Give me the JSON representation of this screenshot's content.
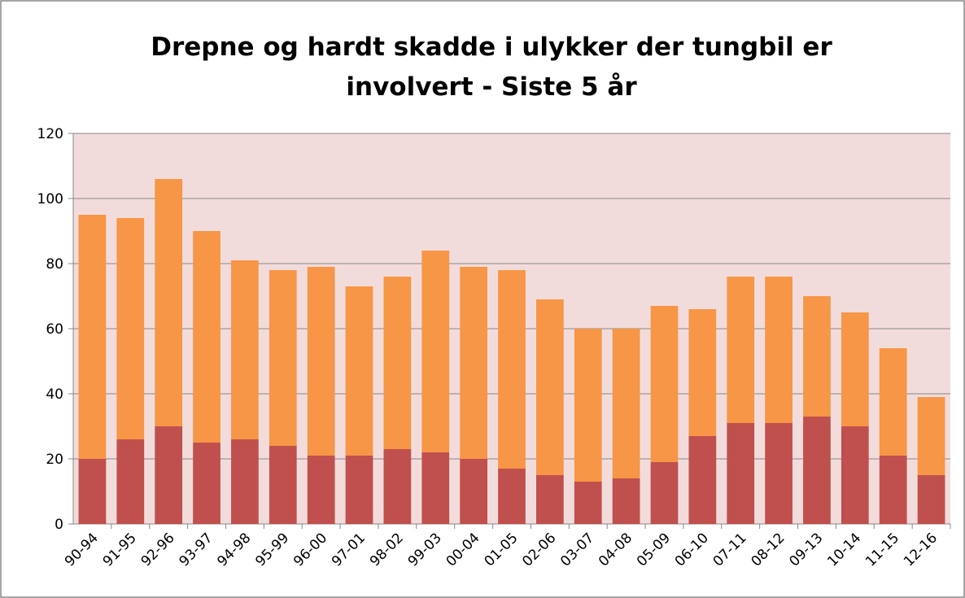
{
  "chart_data": {
    "type": "stacked_bar",
    "title": [
      "Drepne og hardt skadde i ulykker der tungbil er",
      "involvert - Siste 5 år"
    ],
    "categories": [
      "90-94",
      "91-95",
      "92-96",
      "93-97",
      "94-98",
      "95-99",
      "96-00",
      "97-01",
      "98-02",
      "99-03",
      "00-04",
      "01-05",
      "02-06",
      "03-07",
      "04-08",
      "05-09",
      "06-10",
      "07-11",
      "08-12",
      "09-13",
      "10-14",
      "11-15",
      "12-16"
    ],
    "series": [
      {
        "color": "#c0504d",
        "values": [
          20,
          26,
          30,
          25,
          26,
          24,
          21,
          21,
          23,
          22,
          20,
          17,
          15,
          13,
          14,
          19,
          27,
          31,
          31,
          33,
          30,
          21,
          15
        ]
      },
      {
        "color": "#f79646",
        "values": [
          75,
          68,
          76,
          65,
          55,
          54,
          58,
          52,
          53,
          62,
          59,
          61,
          54,
          47,
          46,
          48,
          39,
          45,
          45,
          37,
          35,
          33,
          24
        ]
      }
    ],
    "ylim": [
      0,
      120
    ],
    "yticks": [
      0,
      20,
      40,
      60,
      80,
      100,
      120
    ],
    "grid": true,
    "plot_background": "#f2dcdb"
  }
}
